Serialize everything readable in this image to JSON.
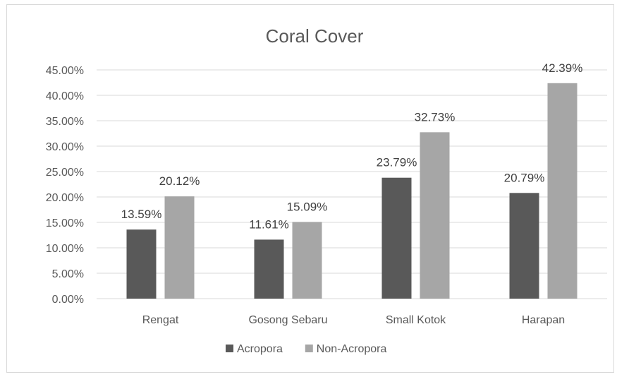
{
  "chart_data": {
    "type": "bar",
    "title": "Coral Cover",
    "xlabel": "",
    "ylabel": "",
    "categories": [
      "Rengat",
      "Gosong Sebaru",
      "Small Kotok",
      "Harapan"
    ],
    "series": [
      {
        "name": "Acropora",
        "color": "#595959",
        "values": [
          13.59,
          11.61,
          23.79,
          20.79
        ],
        "labels": [
          "13.59%",
          "11.61%",
          "23.79%",
          "20.79%"
        ]
      },
      {
        "name": "Non-Acropora",
        "color": "#a6a6a6",
        "values": [
          20.12,
          15.09,
          32.73,
          42.39
        ],
        "labels": [
          "20.12%",
          "15.09%",
          "32.73%",
          "42.39%"
        ]
      }
    ],
    "ylim": [
      0,
      45
    ],
    "yticks": [
      0,
      5,
      10,
      15,
      20,
      25,
      30,
      35,
      40,
      45
    ],
    "ytick_labels": [
      "0.00%",
      "5.00%",
      "10.00%",
      "15.00%",
      "20.00%",
      "25.00%",
      "30.00%",
      "35.00%",
      "40.00%",
      "45.00%"
    ],
    "grid": true,
    "legend_position": "bottom"
  }
}
